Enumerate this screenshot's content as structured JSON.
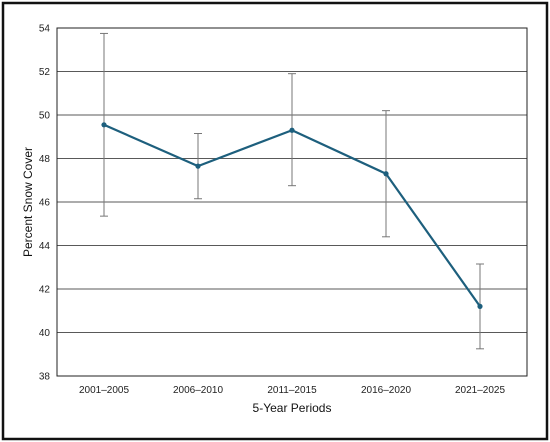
{
  "chart_data": {
    "type": "line",
    "title": "",
    "xlabel": "5-Year Periods",
    "ylabel": "Percent Snow Cover",
    "categories": [
      "2001–2005",
      "2006–2010",
      "2011–2015",
      "2016–2020",
      "2021–2025"
    ],
    "series": [
      {
        "values": [
          49.55,
          47.65,
          49.3,
          47.3,
          41.2
        ],
        "error_high": [
          53.75,
          49.15,
          51.9,
          50.2,
          43.15
        ],
        "error_low": [
          45.35,
          46.15,
          46.75,
          44.4,
          39.25
        ]
      }
    ],
    "ylim": [
      38,
      54
    ],
    "yticks": [
      38,
      40,
      42,
      44,
      46,
      48,
      50,
      52,
      54
    ],
    "grid": true,
    "legend": "none",
    "colors": {
      "line": "#1d5f7d",
      "marker": "#1d5f7d",
      "error_bar": "#777777"
    }
  }
}
